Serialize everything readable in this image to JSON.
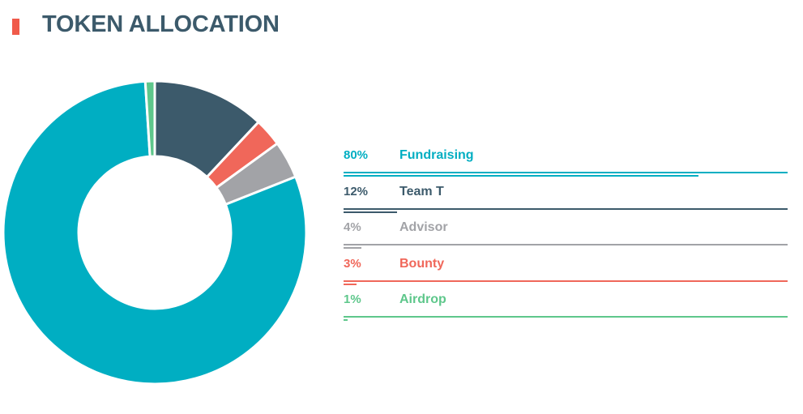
{
  "header": {
    "title": "TOKEN ALLOCATION",
    "accent_color": "#f05a4a",
    "title_color": "#3c5a6b"
  },
  "chart_data": {
    "type": "pie",
    "style": "donut",
    "series": [
      {
        "name": "Fundraising",
        "value": 80,
        "label": "80%",
        "color": "#00aec2"
      },
      {
        "name": "Team T",
        "value": 12,
        "label": "12%",
        "color": "#3c5a6b"
      },
      {
        "name": "Advisor",
        "value": 4,
        "label": "4%",
        "color": "#a2a3a7"
      },
      {
        "name": "Bounty",
        "value": 3,
        "label": "3%",
        "color": "#f0675a"
      },
      {
        "name": "Airdrop",
        "value": 1,
        "label": "1%",
        "color": "#5ec78b"
      }
    ],
    "legend_placement": "right"
  }
}
